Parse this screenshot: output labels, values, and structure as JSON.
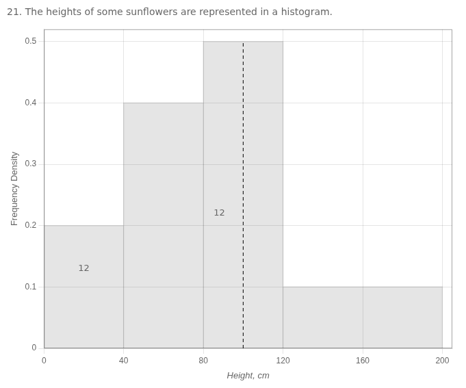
{
  "chart_data": {
    "type": "histogram",
    "title": "21. The heights of some sunflowers are represented in a histogram.",
    "x_label": "Height, cm",
    "y_label": "Frequency Density",
    "bins": [
      0,
      40,
      80,
      120,
      200
    ],
    "values": [
      0.2,
      0.4,
      0.5,
      0.1
    ],
    "xlim": [
      0,
      205
    ],
    "xticks": [
      0,
      40,
      80,
      120,
      160,
      200
    ],
    "ylim": [
      0,
      0.52
    ],
    "yticks": [
      0,
      0.1,
      0.2,
      0.3,
      0.4,
      0.5
    ],
    "grid": true,
    "annotations": [
      {
        "text": "12",
        "x": 20,
        "y": 0.13
      },
      {
        "text": "12",
        "x": 88,
        "y": 0.22
      }
    ],
    "reference_lines": [
      {
        "x": 100,
        "y": [
          0,
          0.5
        ],
        "line_style": "dashed",
        "color": "black"
      }
    ]
  }
}
